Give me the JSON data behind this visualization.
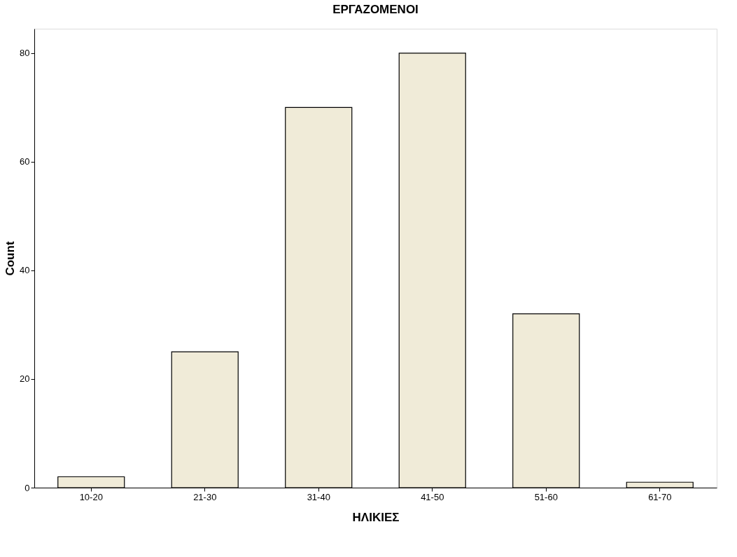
{
  "chart_data": {
    "type": "bar",
    "title": "ΕΡΓΑΖΟΜΕΝΟΙ",
    "xlabel": "ΗΛΙΚΙΕΣ",
    "ylabel": "Count",
    "categories": [
      "10-20",
      "21-30",
      "31-40",
      "41-50",
      "51-60",
      "61-70"
    ],
    "values": [
      2,
      25,
      70,
      80,
      32,
      1
    ],
    "color": "#f0ebd8",
    "ylim": [
      0,
      84.5
    ],
    "yticks": [
      0,
      20,
      40,
      60,
      80
    ],
    "grid": false
  }
}
